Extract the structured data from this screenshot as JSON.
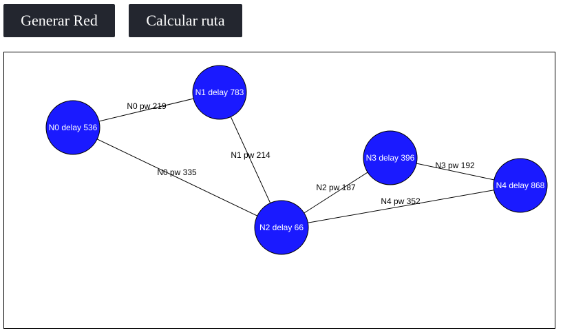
{
  "buttons": {
    "generate_label": "Generar Red",
    "calculate_label": "Calcular ruta"
  },
  "colors": {
    "node_fill": "#1a1aff",
    "node_stroke": "#000000",
    "edge": "#000000"
  },
  "network": {
    "nodes": [
      {
        "id": "N0",
        "label": "N0 delay 536"
      },
      {
        "id": "N1",
        "label": "N1 delay 783"
      },
      {
        "id": "N2",
        "label": "N2 delay 66"
      },
      {
        "id": "N3",
        "label": "N3 delay 396"
      },
      {
        "id": "N4",
        "label": "N4 delay 868"
      }
    ],
    "edges": [
      {
        "from": "N0",
        "to": "N1",
        "label": "N0 pw 219"
      },
      {
        "from": "N0",
        "to": "N2",
        "label": "N0 pw 335"
      },
      {
        "from": "N1",
        "to": "N2",
        "label": "N1 pw 214"
      },
      {
        "from": "N2",
        "to": "N3",
        "label": "N2 pw 187"
      },
      {
        "from": "N3",
        "to": "N4",
        "label": "N3 pw 192"
      },
      {
        "from": "N2",
        "to": "N4",
        "label": "N4 pw 352"
      }
    ]
  }
}
